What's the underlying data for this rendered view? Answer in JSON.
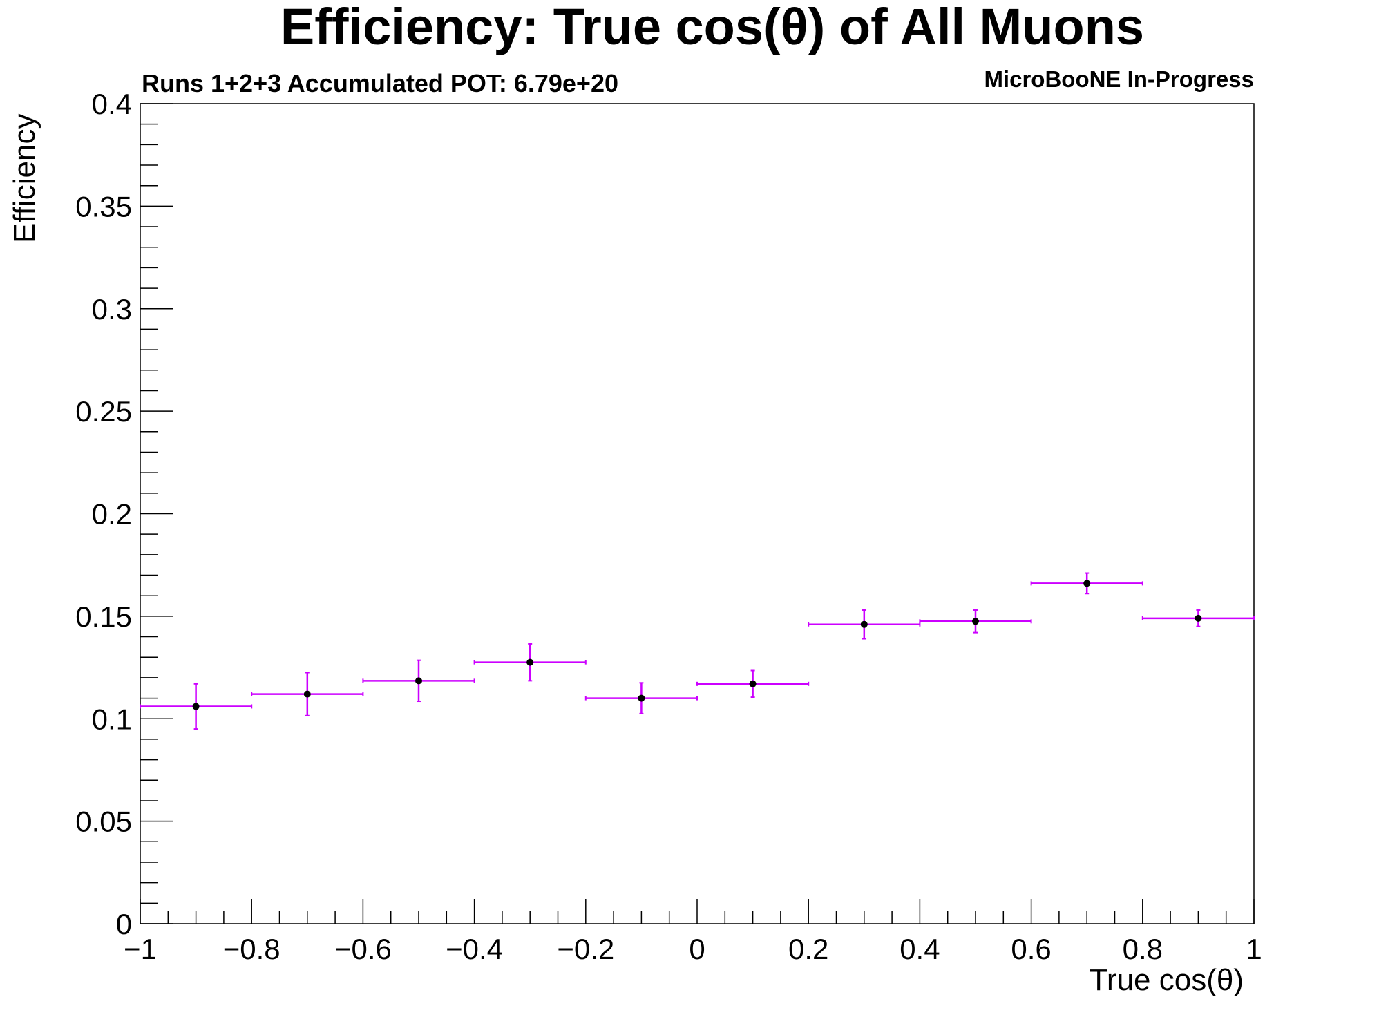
{
  "chart_data": {
    "type": "scatter",
    "title": "Efficiency: True cos(θ) of All Muons",
    "subtitle": "Runs 1+2+3 Accumulated POT: 6.79e+20",
    "tag": "MicroBooNE In-Progress",
    "xlabel": "True cos(θ)",
    "ylabel": "Efficiency",
    "xlim": [
      -1,
      1
    ],
    "ylim": [
      0,
      0.4
    ],
    "x_ticks": [
      -1,
      -0.8,
      -0.6,
      -0.4,
      -0.2,
      0,
      0.2,
      0.4,
      0.6,
      0.8,
      1
    ],
    "x_tick_labels": [
      "−1",
      "−0.8",
      "−0.6",
      "−0.4",
      "−0.2",
      "0",
      "0.2",
      "0.4",
      "0.6",
      "0.8",
      "1"
    ],
    "y_ticks": [
      0,
      0.05,
      0.1,
      0.15,
      0.2,
      0.25,
      0.3,
      0.35,
      0.4
    ],
    "y_tick_labels": [
      "0",
      "0.05",
      "0.1",
      "0.15",
      "0.2",
      "0.25",
      "0.3",
      "0.35",
      "0.4"
    ],
    "grid": false,
    "colors": {
      "error_bars": "#cc00ff",
      "markers": "#000000",
      "frame": "#000000"
    },
    "series": [
      {
        "x": [
          -0.9,
          -0.7,
          -0.5,
          -0.3,
          -0.1,
          0.1,
          0.3,
          0.5,
          0.7,
          0.9
        ],
        "x_err": [
          0.1,
          0.1,
          0.1,
          0.1,
          0.1,
          0.1,
          0.1,
          0.1,
          0.1,
          0.1
        ],
        "y": [
          0.106,
          0.112,
          0.1185,
          0.1275,
          0.11,
          0.117,
          0.146,
          0.1475,
          0.166,
          0.149
        ],
        "y_err": [
          0.011,
          0.0105,
          0.01,
          0.009,
          0.0075,
          0.0065,
          0.007,
          0.0055,
          0.005,
          0.004
        ]
      }
    ]
  }
}
